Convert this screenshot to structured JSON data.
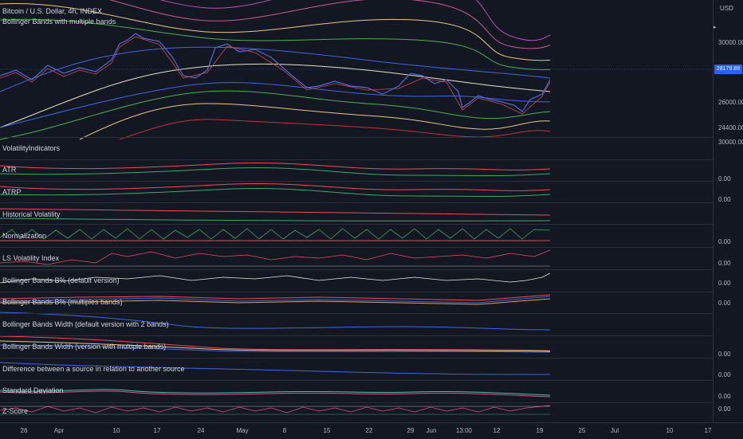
{
  "main_chart": {
    "title": "Bitcoin / U.S. Dollar, 4h, INDEX",
    "indicator": "Bollinger Bands with multiple bands",
    "currency": "USD",
    "price_labels": [
      "30000.00",
      "26000.00",
      "24400.00"
    ],
    "current_price": "28179.89",
    "colors": {
      "price_tag": "#2962ff",
      "bg": "#131722"
    }
  },
  "panes": [
    {
      "name": "VolatilityIndicators",
      "value": "30000.00"
    },
    {
      "name": "ATR",
      "value": "0.00"
    },
    {
      "name": "ATRP",
      "value": "0.00"
    },
    {
      "name": "Historical Volatility",
      "value": ""
    },
    {
      "name": "Normalization",
      "value": "0.00"
    },
    {
      "name": "LS Volatility Index",
      "value": "0.00"
    },
    {
      "name": "Bollinger Bands B% (default version)",
      "value": "0.00"
    },
    {
      "name": "Bollinger Bands B% (multiples bands)",
      "value": "0.00"
    },
    {
      "name": "Bollinger Bands Width (default version with 2 bands)",
      "value": ""
    },
    {
      "name": "Bollinger Bands Width (version with multiple bands)",
      "value": "0.00"
    },
    {
      "name": "Difference between a source in relation to another source",
      "value": "0.00"
    },
    {
      "name": "Standard Deviation",
      "value": "0.00"
    },
    {
      "name": "Z-Score",
      "value": "0.00"
    }
  ],
  "time_axis": [
    "26",
    "Apr",
    "10",
    "17",
    "24",
    "May",
    "8",
    "15",
    "22",
    "29",
    "Jun",
    "13:00",
    "12",
    "19",
    "25",
    "Jul",
    "10",
    "17"
  ]
}
